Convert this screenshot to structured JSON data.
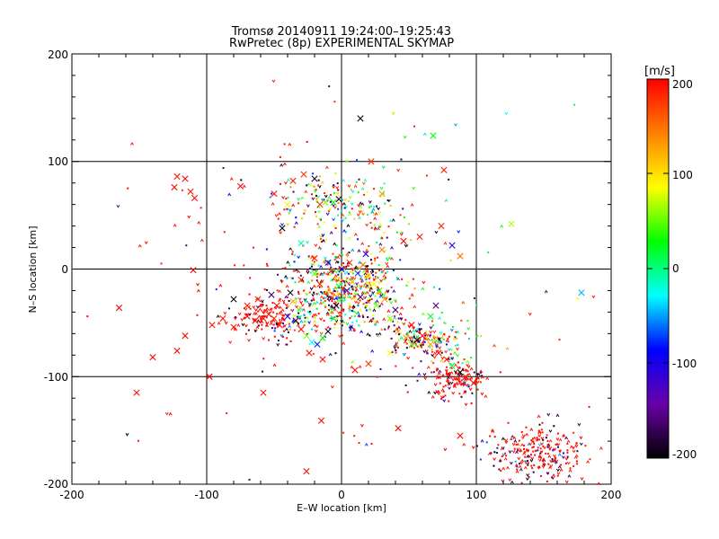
{
  "chart_data": {
    "type": "scatter",
    "title": "Tromsø 20140911 19:24:00–19:25:43",
    "subtitle": "RwPretec (8p) EXPERIMENTAL SKYMAP",
    "xlabel": "E–W location [km]",
    "ylabel": "N–S location [km]",
    "xlim": [
      -200,
      200
    ],
    "ylim": [
      -200,
      200
    ],
    "xticks": [
      "-200",
      "-100",
      "0",
      "100",
      "200"
    ],
    "yticks": [
      "-200",
      "-100",
      "0",
      "100",
      "200"
    ],
    "grid_lines_km": [
      -100,
      0,
      100
    ],
    "grid": true,
    "colorbar": {
      "label": "[m/s]",
      "range": [
        -200,
        200
      ],
      "ticks": [
        "200",
        "100",
        "0",
        "-100",
        "-200"
      ],
      "colormap_stops": [
        "#000000",
        "#6a00a8",
        "#0000ff",
        "#00ffff",
        "#00ff00",
        "#ffff00",
        "#ff8000",
        "#ff0000"
      ]
    },
    "markers": {
      "large": "x",
      "small": "dot/caret"
    },
    "series": [
      {
        "marker": "x",
        "points": [
          [
            14,
            140
          ],
          [
            -122,
            86
          ],
          [
            -116,
            84
          ],
          [
            -124,
            76
          ],
          [
            -112,
            72
          ],
          [
            -109,
            66
          ],
          [
            -75,
            77
          ],
          [
            -50,
            70
          ],
          [
            -36,
            82
          ],
          [
            -28,
            88
          ],
          [
            -20,
            84
          ],
          [
            -16,
            60
          ],
          [
            -12,
            62
          ],
          [
            -6,
            62
          ],
          [
            -2,
            65
          ],
          [
            -165,
            -36
          ],
          [
            -140,
            -82
          ],
          [
            -122,
            -76
          ],
          [
            -116,
            -62
          ],
          [
            -110,
            -1
          ],
          [
            -96,
            -52
          ],
          [
            -88,
            -46
          ],
          [
            -80,
            -28
          ],
          [
            -70,
            -44
          ],
          [
            -64,
            -48
          ],
          [
            -58,
            -46
          ],
          [
            -54,
            -42
          ],
          [
            -50,
            -46
          ],
          [
            -46,
            -52
          ],
          [
            -40,
            -44
          ],
          [
            -34,
            -48
          ],
          [
            -30,
            -56
          ],
          [
            -26,
            -62
          ],
          [
            -22,
            -68
          ],
          [
            -18,
            -70
          ],
          [
            -14,
            -64
          ],
          [
            -10,
            -58
          ],
          [
            -6,
            -46
          ],
          [
            -4,
            -34
          ],
          [
            0,
            -28
          ],
          [
            4,
            -20
          ],
          [
            8,
            -12
          ],
          [
            12,
            -4
          ],
          [
            16,
            4
          ],
          [
            20,
            -6
          ],
          [
            24,
            -14
          ],
          [
            28,
            -20
          ],
          [
            32,
            -28
          ],
          [
            36,
            -46
          ],
          [
            42,
            -58
          ],
          [
            48,
            -64
          ],
          [
            52,
            -70
          ],
          [
            56,
            -66
          ],
          [
            60,
            -62
          ],
          [
            66,
            -70
          ],
          [
            72,
            -78
          ],
          [
            78,
            -84
          ],
          [
            82,
            -90
          ],
          [
            88,
            -96
          ],
          [
            92,
            -100
          ],
          [
            98,
            -106
          ],
          [
            126,
            42
          ],
          [
            178,
            -22
          ],
          [
            -152,
            -115
          ],
          [
            -98,
            -100
          ],
          [
            -58,
            -115
          ],
          [
            -15,
            -141
          ],
          [
            -26,
            -188
          ],
          [
            42,
            -148
          ],
          [
            88,
            -155
          ],
          [
            -40,
            60
          ],
          [
            -44,
            38
          ],
          [
            -24,
            -78
          ],
          [
            -14,
            -84
          ],
          [
            10,
            -94
          ],
          [
            20,
            -88
          ],
          [
            36,
            -78
          ],
          [
            -80,
            -54
          ],
          [
            -70,
            -34
          ],
          [
            -62,
            -28
          ],
          [
            -52,
            -24
          ],
          [
            -38,
            -22
          ],
          [
            -30,
            -10
          ],
          [
            -20,
            -4
          ],
          [
            -8,
            -2
          ],
          [
            6,
            6
          ],
          [
            18,
            14
          ],
          [
            30,
            18
          ],
          [
            46,
            26
          ],
          [
            58,
            30
          ],
          [
            74,
            40
          ],
          [
            82,
            22
          ],
          [
            88,
            12
          ],
          [
            70,
            -34
          ],
          [
            66,
            -44
          ],
          [
            52,
            -52
          ],
          [
            40,
            -38
          ],
          [
            26,
            -34
          ],
          [
            14,
            -26
          ],
          [
            -2,
            -16
          ],
          [
            -16,
            -14
          ],
          [
            -36,
            -30
          ],
          [
            -48,
            -34
          ],
          [
            22,
            100
          ],
          [
            30,
            70
          ],
          [
            68,
            124
          ],
          [
            76,
            92
          ],
          [
            -30,
            24
          ],
          [
            -20,
            10
          ],
          [
            -10,
            6
          ],
          [
            0,
            0
          ]
        ]
      },
      {
        "marker": "dot",
        "clusters": [
          {
            "center": [
              0,
              -20
            ],
            "spread": [
              38,
              34
            ],
            "count": 520
          },
          {
            "center": [
              -50,
              -45
            ],
            "spread": [
              28,
              16
            ],
            "count": 160
          },
          {
            "center": [
              60,
              -65
            ],
            "spread": [
              28,
              14
            ],
            "count": 160
          },
          {
            "center": [
              85,
              -100
            ],
            "spread": [
              18,
              16
            ],
            "count": 160
          },
          {
            "center": [
              145,
              -170
            ],
            "spread": [
              32,
              24
            ],
            "count": 260
          },
          {
            "center": [
              -18,
              60
            ],
            "spread": [
              30,
              22
            ],
            "count": 90
          },
          {
            "center": [
              20,
              55
            ],
            "spread": [
              30,
              30
            ],
            "count": 90
          },
          {
            "center": [
              0,
              0
            ],
            "spread": [
              150,
              150
            ],
            "count": 160
          }
        ]
      }
    ]
  }
}
